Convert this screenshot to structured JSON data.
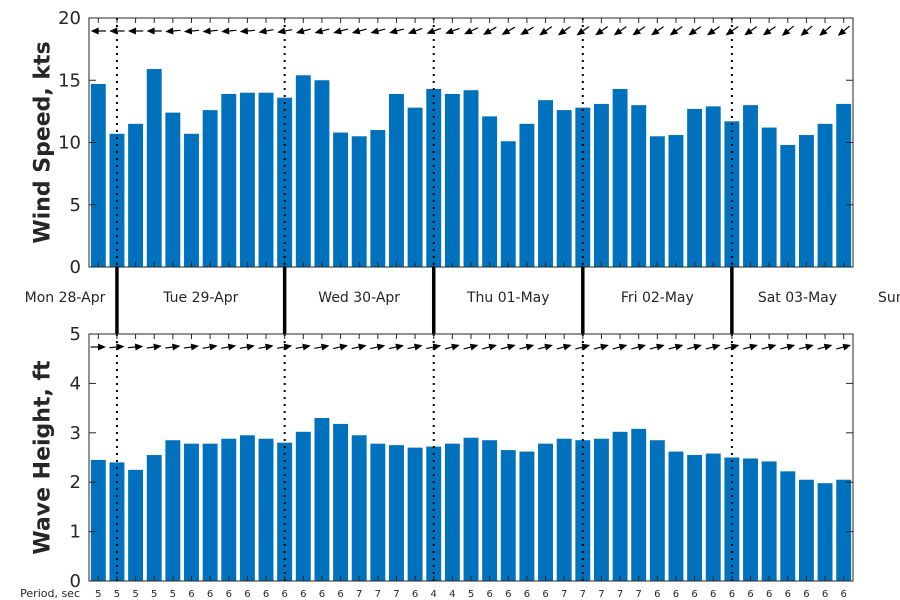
{
  "chart_data": [
    {
      "type": "bar",
      "ylabel": "Wind Speed, kts",
      "ylim": [
        0,
        20
      ],
      "yticks": [
        0,
        5,
        10,
        15,
        20
      ],
      "bar_color": "#0072bd",
      "values": [
        14.7,
        10.7,
        11.5,
        15.9,
        12.4,
        10.7,
        12.6,
        13.9,
        14.0,
        14.0,
        13.6,
        15.4,
        15.0,
        10.8,
        10.5,
        11.0,
        13.9,
        12.8,
        14.3,
        13.9,
        14.2,
        12.1,
        10.1,
        11.5,
        13.4,
        12.6,
        12.8,
        13.1,
        14.3,
        13.0,
        10.5,
        10.6,
        12.7,
        12.9,
        11.7,
        13.0,
        11.2,
        9.8,
        10.6,
        11.5,
        13.1
      ],
      "direction_arrows": "wind direction shown by arrows along the top of the panel",
      "arrow_directions_deg": [
        180,
        180,
        180,
        180,
        175,
        175,
        175,
        175,
        175,
        170,
        170,
        165,
        165,
        165,
        165,
        165,
        165,
        160,
        160,
        160,
        155,
        150,
        150,
        150,
        145,
        145,
        145,
        145,
        145,
        145,
        145,
        145,
        145,
        145,
        145,
        145,
        145,
        140,
        140,
        140,
        140
      ],
      "grid": false
    },
    {
      "type": "bar",
      "ylabel": "Wave Height, ft",
      "ylim": [
        0,
        5
      ],
      "yticks": [
        0,
        1,
        2,
        3,
        4,
        5
      ],
      "bar_color": "#0072bd",
      "values": [
        2.45,
        2.4,
        2.25,
        2.55,
        2.85,
        2.78,
        2.78,
        2.88,
        2.95,
        2.88,
        2.8,
        3.02,
        3.3,
        3.18,
        2.95,
        2.78,
        2.75,
        2.7,
        2.72,
        2.78,
        2.9,
        2.85,
        2.65,
        2.62,
        2.78,
        2.88,
        2.85,
        2.88,
        3.02,
        3.08,
        2.85,
        2.62,
        2.55,
        2.58,
        2.5,
        2.48,
        2.42,
        2.22,
        2.05,
        1.98,
        2.05
      ],
      "arrow_directions_deg": [
        0,
        -5,
        -5,
        -8,
        -8,
        -8,
        -10,
        -10,
        -10,
        -10,
        -10,
        -10,
        -10,
        -12,
        -12,
        -12,
        -12,
        -12,
        -12,
        -15,
        -15,
        -15,
        -15,
        -15,
        -15,
        -15,
        -15,
        -15,
        -15,
        -15,
        -15,
        -15,
        -15,
        -15,
        -15,
        -15,
        -15,
        -15,
        -15,
        -15,
        -15
      ],
      "grid": false
    }
  ],
  "day_labels": [
    "Mon 28-Apr",
    "Tue 29-Apr",
    "Wed 30-Apr",
    "Thu 01-May",
    "Fri 02-May",
    "Sat 03-May",
    "Sun"
  ],
  "period_label": "Period, sec",
  "periods": [
    5,
    5,
    5,
    5,
    5,
    6,
    6,
    6,
    6,
    6,
    6,
    6,
    6,
    6,
    7,
    7,
    7,
    6,
    4,
    4,
    5,
    6,
    6,
    6,
    6,
    7,
    7,
    7,
    7,
    7,
    6,
    6,
    6,
    6,
    6,
    6,
    6,
    6,
    6,
    6,
    6
  ]
}
